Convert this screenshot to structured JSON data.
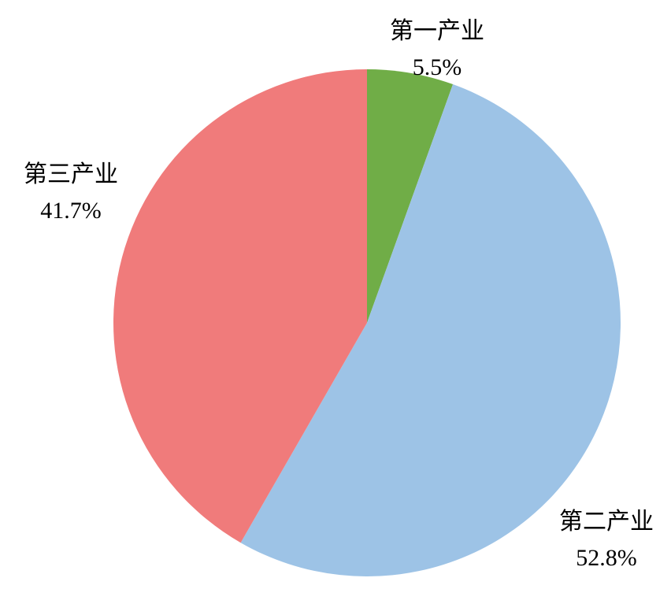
{
  "chart_data": {
    "type": "pie",
    "categories": [
      "第一产业",
      "第二产业",
      "第三产业"
    ],
    "values": [
      5.5,
      52.8,
      41.7
    ],
    "value_labels": [
      "5.5%",
      "52.8%",
      "41.7%"
    ],
    "colors": [
      "#70ad47",
      "#9dc3e6",
      "#f07b7b"
    ]
  }
}
